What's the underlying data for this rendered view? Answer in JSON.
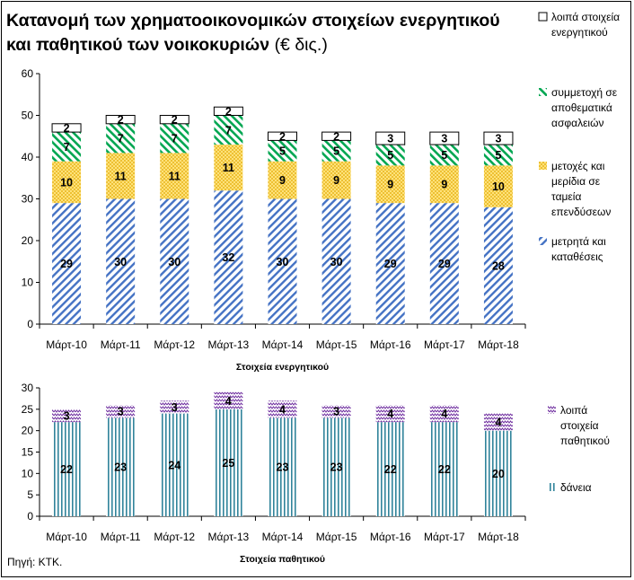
{
  "title": {
    "bold": "Κατανομή των χρηματοοικονομικών στοιχείων ενεργητικού και παθητικού των νοικοκυριών",
    "unit": "(€ δις.)"
  },
  "source": "Πηγή: ΚΤΚ.",
  "colors": {
    "cash": "#4472c4",
    "funds": "#ffc000",
    "insurance": "#00a651",
    "other_assets": "#ffffff",
    "loans": "#31849b",
    "other_liabilities": "#7030a0"
  },
  "chart_data": [
    {
      "type": "bar",
      "stacked": true,
      "xlabel": "Στοιχεία ενεργητικού",
      "ylabel": "",
      "ylim": [
        0,
        60
      ],
      "yticks": [
        0,
        10,
        20,
        30,
        40,
        50,
        60
      ],
      "grid": false,
      "legend": "right",
      "categories": [
        "Μάρτ-10",
        "Μάρτ-11",
        "Μάρτ-12",
        "Μάρτ-13",
        "Μάρτ-14",
        "Μάρτ-15",
        "Μάρτ-16",
        "Μάρτ-17",
        "Μάρτ-18"
      ],
      "series": [
        {
          "name": "μετρητά και καταθέσεις",
          "values": [
            29,
            30,
            30,
            32,
            30,
            30,
            29,
            29,
            28
          ],
          "labels": [
            "29",
            "30",
            "30",
            "32",
            "30",
            "30",
            "29",
            "29",
            "28"
          ]
        },
        {
          "name": "μετοχές και μερίδια σε ταμεία επενδύσεων",
          "values": [
            10,
            11,
            11,
            11,
            9,
            9,
            9,
            9,
            10
          ],
          "labels": [
            "10",
            "11",
            "11",
            "11",
            "9",
            "9",
            "9",
            "9",
            "10"
          ]
        },
        {
          "name": "συμμετοχή σε αποθεματικά ασφαλειών",
          "values": [
            7,
            7,
            7,
            7,
            5,
            5,
            5,
            5,
            5
          ],
          "labels": [
            "7",
            "7",
            "7",
            "7",
            "5",
            "5",
            "5",
            "5",
            "5"
          ]
        },
        {
          "name": "λοιπά στοιχεία ενεργητικού",
          "values": [
            2,
            2,
            2,
            2,
            2,
            2,
            3,
            3,
            3
          ],
          "labels": [
            "2",
            "2",
            "2",
            "2",
            "2",
            "2",
            "3",
            "3",
            "3"
          ]
        }
      ]
    },
    {
      "type": "bar",
      "stacked": true,
      "xlabel": "Στοιχεία παθητικού",
      "ylabel": "",
      "ylim": [
        0,
        30
      ],
      "yticks": [
        0,
        5,
        10,
        15,
        20,
        25,
        30
      ],
      "grid": false,
      "legend": "right",
      "categories": [
        "Μάρτ-10",
        "Μάρτ-11",
        "Μάρτ-12",
        "Μάρτ-13",
        "Μάρτ-14",
        "Μάρτ-15",
        "Μάρτ-16",
        "Μάρτ-17",
        "Μάρτ-18"
      ],
      "series": [
        {
          "name": "δάνεια",
          "values": [
            22,
            23,
            24,
            25,
            23,
            23,
            22,
            22,
            20
          ],
          "labels": [
            "22",
            "23",
            "24",
            "25",
            "23",
            "23",
            "22",
            "22",
            "20"
          ]
        },
        {
          "name": "λοιπά στοιχεία παθητικού",
          "values": [
            3,
            3,
            3,
            4,
            4,
            3,
            4,
            4,
            4
          ],
          "labels": [
            "3",
            "3",
            "3",
            "4",
            "4",
            "3",
            "4",
            "4",
            "4"
          ]
        }
      ]
    }
  ]
}
